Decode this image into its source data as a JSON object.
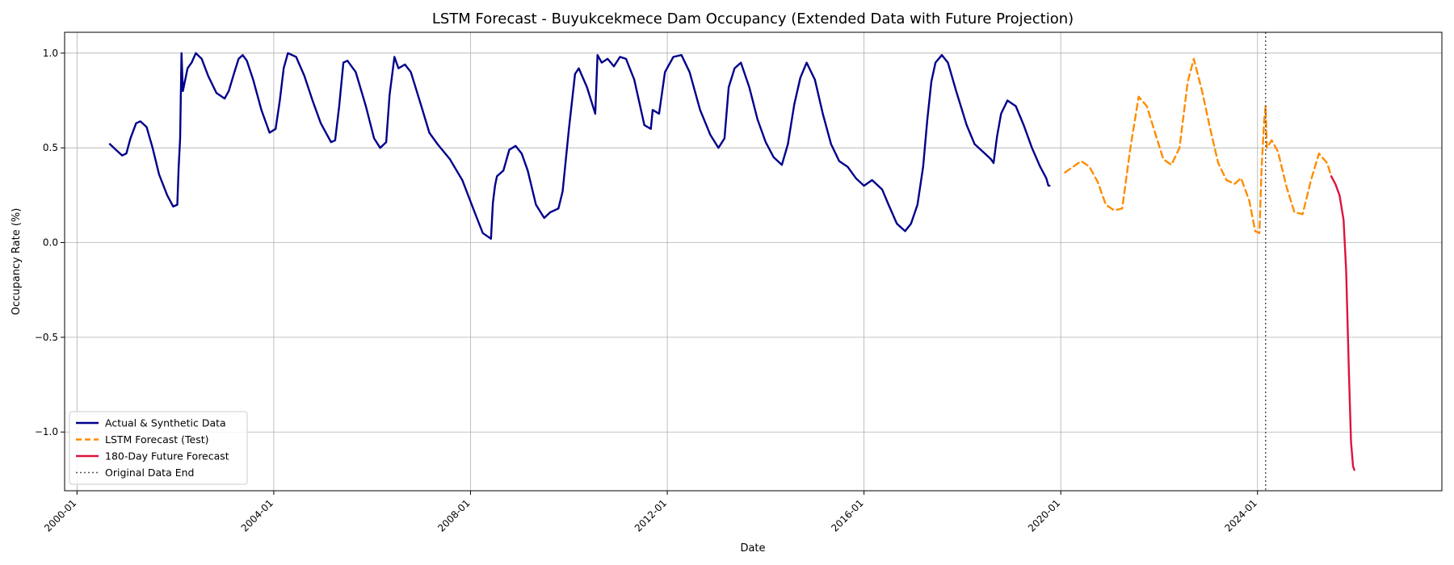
{
  "chart_data": {
    "type": "line",
    "title": "LSTM Forecast - Buyukcekmece Dam Occupancy (Extended Data with Future Projection)",
    "xlabel": "Date",
    "ylabel": "Occupancy Rate (%)",
    "xlim": [
      "1999-10-01",
      "2027-10-01"
    ],
    "ylim": [
      -1.31,
      1.11
    ],
    "grid": true,
    "legend_position": "bottom-left",
    "x_ticks": [
      "2000-01",
      "2004-01",
      "2008-01",
      "2012-01",
      "2016-01",
      "2020-01",
      "2024-01"
    ],
    "y_ticks": [
      -1.0,
      -0.5,
      0.0,
      0.5,
      1.0
    ],
    "y_tick_labels": [
      "−1.0",
      "−0.5",
      "0.0",
      "0.5",
      "1.0"
    ],
    "vertical_line": {
      "date": "2024-03-01",
      "label": "Original Data End",
      "color": "#555555"
    },
    "series": [
      {
        "name": "Actual & Synthetic Data",
        "color": "#00008b",
        "style": "solid",
        "points": [
          [
            "2000-09-01",
            0.52
          ],
          [
            "2000-10-15",
            0.49
          ],
          [
            "2000-12-01",
            0.46
          ],
          [
            "2001-01-01",
            0.47
          ],
          [
            "2001-02-01",
            0.55
          ],
          [
            "2001-03-15",
            0.63
          ],
          [
            "2001-04-15",
            0.64
          ],
          [
            "2001-06-01",
            0.61
          ],
          [
            "2001-07-15",
            0.5
          ],
          [
            "2001-09-01",
            0.36
          ],
          [
            "2001-11-01",
            0.25
          ],
          [
            "2001-12-15",
            0.19
          ],
          [
            "2002-01-15",
            0.2
          ],
          [
            "2002-01-25",
            0.4
          ],
          [
            "2002-02-05",
            0.55
          ],
          [
            "2002-02-15",
            1.0
          ],
          [
            "2002-02-25",
            0.8
          ],
          [
            "2002-04-01",
            0.92
          ],
          [
            "2002-05-01",
            0.95
          ],
          [
            "2002-06-01",
            1.0
          ],
          [
            "2002-07-15",
            0.97
          ],
          [
            "2002-09-01",
            0.88
          ],
          [
            "2002-11-01",
            0.79
          ],
          [
            "2003-01-01",
            0.76
          ],
          [
            "2003-02-01",
            0.8
          ],
          [
            "2003-03-15",
            0.9
          ],
          [
            "2003-04-15",
            0.97
          ],
          [
            "2003-05-15",
            0.99
          ],
          [
            "2003-06-15",
            0.96
          ],
          [
            "2003-08-01",
            0.86
          ],
          [
            "2003-10-01",
            0.7
          ],
          [
            "2003-12-01",
            0.58
          ],
          [
            "2004-01-15",
            0.6
          ],
          [
            "2004-02-15",
            0.75
          ],
          [
            "2004-03-15",
            0.92
          ],
          [
            "2004-04-15",
            1.0
          ],
          [
            "2004-06-15",
            0.98
          ],
          [
            "2004-08-15",
            0.88
          ],
          [
            "2004-10-15",
            0.75
          ],
          [
            "2004-12-15",
            0.63
          ],
          [
            "2005-03-01",
            0.53
          ],
          [
            "2005-04-01",
            0.54
          ],
          [
            "2005-05-01",
            0.72
          ],
          [
            "2005-06-01",
            0.95
          ],
          [
            "2005-07-01",
            0.96
          ],
          [
            "2005-09-01",
            0.9
          ],
          [
            "2005-11-15",
            0.72
          ],
          [
            "2006-01-15",
            0.55
          ],
          [
            "2006-03-01",
            0.5
          ],
          [
            "2006-04-15",
            0.53
          ],
          [
            "2006-05-10",
            0.78
          ],
          [
            "2006-06-15",
            0.98
          ],
          [
            "2006-07-15",
            0.92
          ],
          [
            "2006-09-01",
            0.94
          ],
          [
            "2006-10-15",
            0.9
          ],
          [
            "2007-01-01",
            0.72
          ],
          [
            "2007-03-01",
            0.58
          ],
          [
            "2007-05-01",
            0.52
          ],
          [
            "2007-08-01",
            0.44
          ],
          [
            "2007-11-01",
            0.33
          ],
          [
            "2008-02-01",
            0.16
          ],
          [
            "2008-04-01",
            0.05
          ],
          [
            "2008-06-01",
            0.02
          ],
          [
            "2008-06-15",
            0.21
          ],
          [
            "2008-07-01",
            0.3
          ],
          [
            "2008-07-15",
            0.35
          ],
          [
            "2008-09-01",
            0.38
          ],
          [
            "2008-10-15",
            0.49
          ],
          [
            "2008-12-01",
            0.51
          ],
          [
            "2009-01-15",
            0.47
          ],
          [
            "2009-03-01",
            0.38
          ],
          [
            "2009-05-01",
            0.2
          ],
          [
            "2009-07-01",
            0.13
          ],
          [
            "2009-08-15",
            0.16
          ],
          [
            "2009-10-15",
            0.18
          ],
          [
            "2009-11-15",
            0.27
          ],
          [
            "2010-01-01",
            0.6
          ],
          [
            "2010-02-15",
            0.89
          ],
          [
            "2010-03-15",
            0.92
          ],
          [
            "2010-05-15",
            0.82
          ],
          [
            "2010-07-15",
            0.68
          ],
          [
            "2010-08-01",
            0.99
          ],
          [
            "2010-09-01",
            0.95
          ],
          [
            "2010-10-15",
            0.97
          ],
          [
            "2010-12-01",
            0.93
          ],
          [
            "2011-01-15",
            0.98
          ],
          [
            "2011-03-01",
            0.97
          ],
          [
            "2011-05-01",
            0.86
          ],
          [
            "2011-07-15",
            0.62
          ],
          [
            "2011-09-01",
            0.6
          ],
          [
            "2011-09-15",
            0.7
          ],
          [
            "2011-11-01",
            0.68
          ],
          [
            "2011-12-15",
            0.9
          ],
          [
            "2012-02-15",
            0.98
          ],
          [
            "2012-04-15",
            0.99
          ],
          [
            "2012-06-15",
            0.9
          ],
          [
            "2012-09-01",
            0.7
          ],
          [
            "2012-11-15",
            0.57
          ],
          [
            "2013-01-15",
            0.5
          ],
          [
            "2013-03-01",
            0.55
          ],
          [
            "2013-04-01",
            0.82
          ],
          [
            "2013-05-15",
            0.92
          ],
          [
            "2013-07-01",
            0.95
          ],
          [
            "2013-09-01",
            0.82
          ],
          [
            "2013-11-01",
            0.65
          ],
          [
            "2014-01-01",
            0.53
          ],
          [
            "2014-03-01",
            0.45
          ],
          [
            "2014-05-01",
            0.41
          ],
          [
            "2014-06-15",
            0.52
          ],
          [
            "2014-08-01",
            0.73
          ],
          [
            "2014-09-15",
            0.87
          ],
          [
            "2014-11-01",
            0.95
          ],
          [
            "2015-01-01",
            0.86
          ],
          [
            "2015-03-01",
            0.68
          ],
          [
            "2015-05-01",
            0.52
          ],
          [
            "2015-07-01",
            0.43
          ],
          [
            "2015-09-01",
            0.4
          ],
          [
            "2015-11-01",
            0.34
          ],
          [
            "2016-01-01",
            0.3
          ],
          [
            "2016-03-01",
            0.33
          ],
          [
            "2016-05-15",
            0.28
          ],
          [
            "2016-07-01",
            0.2
          ],
          [
            "2016-09-01",
            0.1
          ],
          [
            "2016-11-01",
            0.06
          ],
          [
            "2016-12-15",
            0.1
          ],
          [
            "2017-02-01",
            0.2
          ],
          [
            "2017-03-15",
            0.4
          ],
          [
            "2017-04-15",
            0.65
          ],
          [
            "2017-05-15",
            0.85
          ],
          [
            "2017-06-15",
            0.95
          ],
          [
            "2017-08-01",
            0.99
          ],
          [
            "2017-09-15",
            0.95
          ],
          [
            "2017-11-15",
            0.8
          ],
          [
            "2018-02-01",
            0.62
          ],
          [
            "2018-04-01",
            0.52
          ],
          [
            "2018-06-01",
            0.48
          ],
          [
            "2018-08-01",
            0.44
          ],
          [
            "2018-08-20",
            0.42
          ],
          [
            "2018-09-15",
            0.56
          ],
          [
            "2018-10-15",
            0.68
          ],
          [
            "2018-12-01",
            0.75
          ],
          [
            "2019-02-01",
            0.72
          ],
          [
            "2019-04-01",
            0.62
          ],
          [
            "2019-06-01",
            0.5
          ],
          [
            "2019-08-01",
            0.4
          ],
          [
            "2019-09-15",
            0.34
          ],
          [
            "2019-10-01",
            0.3
          ],
          [
            "2019-10-10",
            0.3
          ]
        ]
      },
      {
        "name": "LSTM Forecast (Test)",
        "color": "#ff8c00",
        "style": "dashed",
        "points": [
          [
            "2020-02-01",
            0.37
          ],
          [
            "2020-04-01",
            0.4
          ],
          [
            "2020-06-01",
            0.43
          ],
          [
            "2020-08-01",
            0.4
          ],
          [
            "2020-10-01",
            0.32
          ],
          [
            "2020-12-01",
            0.2
          ],
          [
            "2021-02-01",
            0.17
          ],
          [
            "2021-04-01",
            0.18
          ],
          [
            "2021-06-01",
            0.5
          ],
          [
            "2021-08-01",
            0.77
          ],
          [
            "2021-10-01",
            0.72
          ],
          [
            "2021-12-01",
            0.58
          ],
          [
            "2022-02-01",
            0.44
          ],
          [
            "2022-04-01",
            0.41
          ],
          [
            "2022-06-01",
            0.5
          ],
          [
            "2022-08-01",
            0.85
          ],
          [
            "2022-09-15",
            0.97
          ],
          [
            "2022-11-15",
            0.8
          ],
          [
            "2023-01-15",
            0.6
          ],
          [
            "2023-03-15",
            0.42
          ],
          [
            "2023-05-15",
            0.33
          ],
          [
            "2023-07-15",
            0.31
          ],
          [
            "2023-09-01",
            0.34
          ],
          [
            "2023-11-01",
            0.22
          ],
          [
            "2023-12-15",
            0.06
          ],
          [
            "2024-01-15",
            0.05
          ],
          [
            "2024-02-01",
            0.4
          ],
          [
            "2024-02-20",
            0.65
          ],
          [
            "2024-03-01",
            0.72
          ],
          [
            "2024-03-10",
            0.5
          ],
          [
            "2024-04-15",
            0.54
          ],
          [
            "2024-06-01",
            0.48
          ],
          [
            "2024-08-01",
            0.3
          ],
          [
            "2024-10-01",
            0.16
          ],
          [
            "2024-12-01",
            0.15
          ],
          [
            "2025-02-01",
            0.33
          ],
          [
            "2025-04-01",
            0.47
          ],
          [
            "2025-06-01",
            0.42
          ],
          [
            "2025-07-01",
            0.35
          ]
        ]
      },
      {
        "name": "180-Day Future Forecast",
        "color": "#dc143c",
        "style": "solid",
        "points": [
          [
            "2025-07-01",
            0.35
          ],
          [
            "2025-08-01",
            0.31
          ],
          [
            "2025-09-01",
            0.25
          ],
          [
            "2025-10-01",
            0.12
          ],
          [
            "2025-10-20",
            -0.15
          ],
          [
            "2025-11-10",
            -0.7
          ],
          [
            "2025-11-25",
            -1.05
          ],
          [
            "2025-12-10",
            -1.18
          ],
          [
            "2025-12-20",
            -1.2
          ]
        ]
      },
      {
        "name": "Original Data End",
        "color": "#555555",
        "style": "dotted",
        "points": []
      }
    ]
  }
}
